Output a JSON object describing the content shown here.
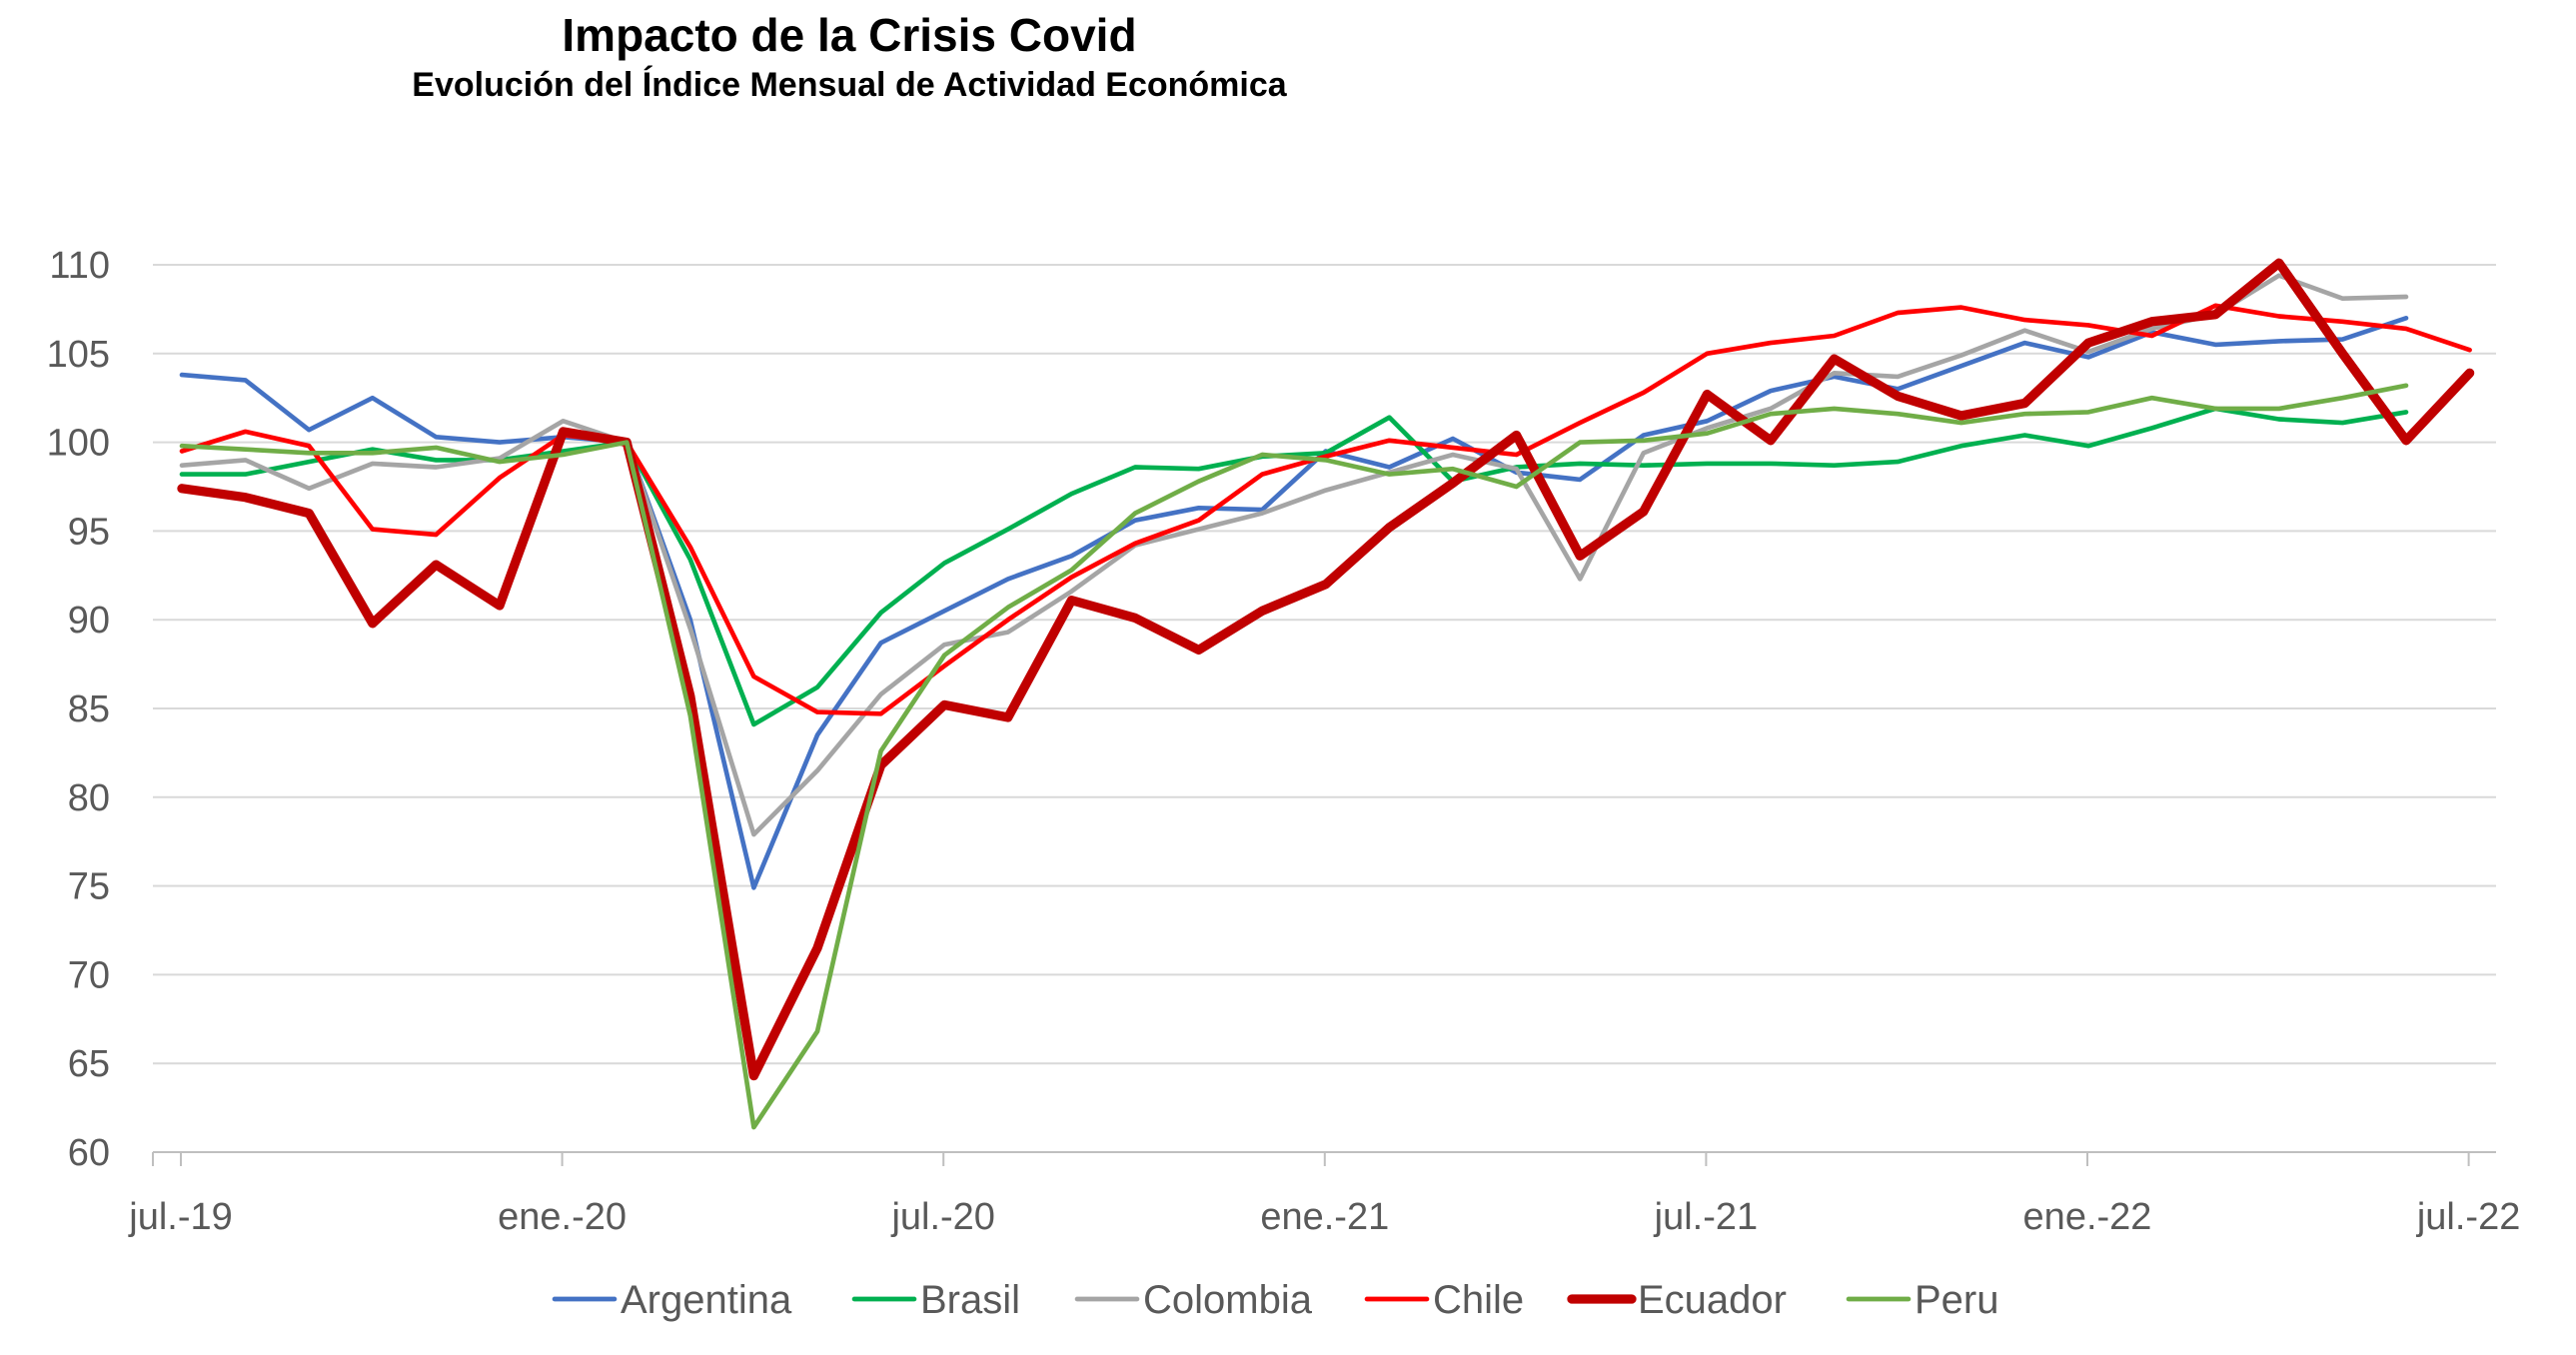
{
  "chart_data": {
    "type": "line",
    "title": "Impacto de la Crisis Covid",
    "subtitle": "Evolución del Índice Mensual de Actividad Económica",
    "xlabel": "",
    "ylabel": "",
    "ylim": [
      60,
      110
    ],
    "yticks": [
      60,
      65,
      70,
      75,
      80,
      85,
      90,
      95,
      100,
      105,
      110
    ],
    "x_tick_labels": [
      "jul.-19",
      "ene.-20",
      "jul.-20",
      "ene.-21",
      "jul.-21",
      "ene.-22",
      "jul.-22"
    ],
    "x": [
      "2019-07",
      "2019-08",
      "2019-09",
      "2019-10",
      "2019-11",
      "2019-12",
      "2020-01",
      "2020-02",
      "2020-03",
      "2020-04",
      "2020-05",
      "2020-06",
      "2020-07",
      "2020-08",
      "2020-09",
      "2020-10",
      "2020-11",
      "2020-12",
      "2021-01",
      "2021-02",
      "2021-03",
      "2021-04",
      "2021-05",
      "2021-06",
      "2021-07",
      "2021-08",
      "2021-09",
      "2021-10",
      "2021-11",
      "2021-12",
      "2022-01",
      "2022-02",
      "2022-03",
      "2022-04",
      "2022-05",
      "2022-06",
      "2022-07"
    ],
    "grid": true,
    "legend_position": "bottom",
    "series": [
      {
        "name": "Argentina",
        "color": "#4472C4",
        "width": 3,
        "values": [
          103.8,
          103.5,
          100.7,
          102.5,
          100.3,
          100.0,
          100.3,
          100.0,
          90.0,
          74.9,
          83.5,
          88.7,
          90.5,
          92.3,
          93.6,
          95.6,
          96.3,
          96.2,
          99.5,
          98.6,
          100.2,
          98.3,
          97.9,
          100.4,
          101.2,
          102.9,
          103.7,
          103.0,
          104.3,
          105.6,
          104.8,
          106.2,
          105.5,
          105.7,
          105.8,
          107.0,
          null
        ]
      },
      {
        "name": "Brasil",
        "color": "#00B050",
        "width": 3,
        "values": [
          98.2,
          98.2,
          98.9,
          99.6,
          99.0,
          99.0,
          99.5,
          100.0,
          93.4,
          84.1,
          86.2,
          90.4,
          93.2,
          95.1,
          97.1,
          98.6,
          98.5,
          99.2,
          99.4,
          101.4,
          97.8,
          98.6,
          98.8,
          98.7,
          98.8,
          98.8,
          98.7,
          98.9,
          99.8,
          100.4,
          99.8,
          100.8,
          101.9,
          101.3,
          101.1,
          101.7,
          null
        ]
      },
      {
        "name": "Colombia",
        "color": "#A5A5A5",
        "width": 3,
        "values": [
          98.7,
          99.0,
          97.4,
          98.8,
          98.6,
          99.1,
          101.2,
          100.0,
          89.5,
          77.9,
          81.5,
          85.8,
          88.6,
          89.3,
          91.6,
          94.2,
          95.1,
          96.0,
          97.3,
          98.3,
          99.3,
          98.5,
          92.3,
          99.4,
          100.8,
          101.9,
          103.9,
          103.7,
          104.9,
          106.3,
          105.1,
          106.4,
          107.2,
          109.4,
          108.1,
          108.2,
          null
        ]
      },
      {
        "name": "Chile",
        "color": "#FF0000",
        "width": 3,
        "values": [
          99.5,
          100.6,
          99.8,
          95.1,
          94.8,
          98.0,
          100.4,
          100.0,
          94.1,
          86.8,
          84.8,
          84.7,
          87.4,
          90.0,
          92.4,
          94.3,
          95.6,
          98.2,
          99.2,
          100.1,
          99.7,
          99.3,
          101.1,
          102.8,
          105.0,
          105.6,
          106.0,
          107.3,
          107.6,
          106.9,
          106.6,
          106.0,
          107.7,
          107.1,
          106.8,
          106.4,
          105.2
        ]
      },
      {
        "name": "Ecuador",
        "color": "#C00000",
        "width": 6,
        "values": [
          97.4,
          96.9,
          96.0,
          89.8,
          93.1,
          90.8,
          100.6,
          100.0,
          85.7,
          64.3,
          71.5,
          81.8,
          85.2,
          84.5,
          91.1,
          90.1,
          88.3,
          90.5,
          92.0,
          95.2,
          97.7,
          100.4,
          93.6,
          96.1,
          102.7,
          100.1,
          104.7,
          102.6,
          101.5,
          102.2,
          105.6,
          106.8,
          107.2,
          110.1,
          105.0,
          100.1,
          103.9
        ]
      },
      {
        "name": "Peru",
        "color": "#70AD47",
        "width": 3,
        "values": [
          99.8,
          99.6,
          99.4,
          99.4,
          99.7,
          98.9,
          99.3,
          100.0,
          84.6,
          61.4,
          66.8,
          82.6,
          88.0,
          90.7,
          92.8,
          96.0,
          97.8,
          99.3,
          99.0,
          98.2,
          98.5,
          97.5,
          100.0,
          100.1,
          100.5,
          101.6,
          101.9,
          101.6,
          101.1,
          101.6,
          101.7,
          102.5,
          101.9,
          101.9,
          102.5,
          103.2,
          null
        ]
      }
    ]
  }
}
